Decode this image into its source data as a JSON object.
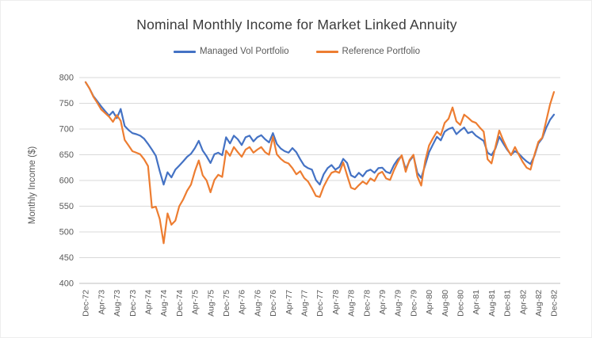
{
  "chart_data": {
    "type": "line",
    "title": "Nominal Monthly Income for Market Linked Annuity",
    "xlabel": "",
    "ylabel": "Monthly Income ($)",
    "ylim": [
      400,
      800
    ],
    "ytick_step": 50,
    "grid": true,
    "legend_position": "top",
    "x_unit": "month",
    "x_first": "Dec-72",
    "x_last": "Dec-82",
    "x_tick_every": 4,
    "x_tick_labels": [
      "Dec-72",
      "Apr-73",
      "Aug-73",
      "Dec-73",
      "Apr-74",
      "Aug-74",
      "Dec-74",
      "Apr-75",
      "Aug-75",
      "Dec-75",
      "Apr-76",
      "Aug-76",
      "Dec-76",
      "Apr-77",
      "Aug-77",
      "Dec-77",
      "Apr-78",
      "Aug-78",
      "Dec-78",
      "Apr-79",
      "Aug-79",
      "Dec-79",
      "Apr-80",
      "Aug-80",
      "Dec-80",
      "Apr-81",
      "Aug-81",
      "Dec-81",
      "Apr-82",
      "Aug-82",
      "Dec-82"
    ],
    "series": [
      {
        "name": "Managed Vol Portfolio",
        "color": "#4472C4",
        "values": [
          791,
          779,
          764,
          754,
          744,
          735,
          726,
          734,
          721,
          739,
          706,
          698,
          692,
          690,
          687,
          681,
          671,
          660,
          648,
          618,
          592,
          616,
          606,
          621,
          629,
          637,
          646,
          652,
          663,
          677,
          658,
          647,
          634,
          651,
          654,
          649,
          684,
          672,
          687,
          680,
          669,
          684,
          687,
          676,
          684,
          688,
          680,
          674,
          692,
          671,
          662,
          657,
          654,
          663,
          655,
          641,
          629,
          624,
          621,
          601,
          592,
          612,
          624,
          630,
          621,
          626,
          642,
          634,
          610,
          606,
          615,
          608,
          618,
          621,
          615,
          624,
          625,
          617,
          614,
          630,
          641,
          648,
          622,
          638,
          648,
          615,
          605,
          630,
          655,
          670,
          685,
          678,
          695,
          700,
          703,
          690,
          697,
          703,
          692,
          695,
          687,
          682,
          677,
          654,
          649,
          662,
          685,
          672,
          660,
          650,
          657,
          652,
          644,
          637,
          632,
          648,
          672,
          682,
          702,
          718,
          728
        ]
      },
      {
        "name": "Reference Portfolio",
        "color": "#ED7D31",
        "values": [
          791,
          779,
          763,
          751,
          738,
          731,
          724,
          714,
          727,
          716,
          679,
          668,
          657,
          654,
          651,
          641,
          628,
          547,
          549,
          525,
          478,
          536,
          514,
          522,
          550,
          563,
          580,
          592,
          618,
          639,
          610,
          600,
          577,
          601,
          611,
          607,
          658,
          648,
          665,
          655,
          646,
          660,
          665,
          654,
          660,
          665,
          655,
          650,
          685,
          651,
          642,
          636,
          633,
          624,
          612,
          618,
          605,
          598,
          585,
          570,
          568,
          588,
          603,
          615,
          618,
          615,
          635,
          610,
          586,
          583,
          591,
          598,
          593,
          604,
          599,
          613,
          617,
          604,
          601,
          620,
          636,
          649,
          617,
          640,
          650,
          608,
          590,
          638,
          668,
          682,
          695,
          688,
          712,
          720,
          742,
          715,
          708,
          728,
          722,
          715,
          712,
          703,
          695,
          641,
          633,
          665,
          697,
          678,
          662,
          649,
          665,
          650,
          636,
          625,
          621,
          650,
          675,
          683,
          715,
          748,
          772
        ]
      }
    ],
    "colors": {
      "gridline": "#D9D9D9",
      "axis_line": "#BFBFBF",
      "tick_label": "#595959",
      "title": "#3b3b3b"
    }
  }
}
